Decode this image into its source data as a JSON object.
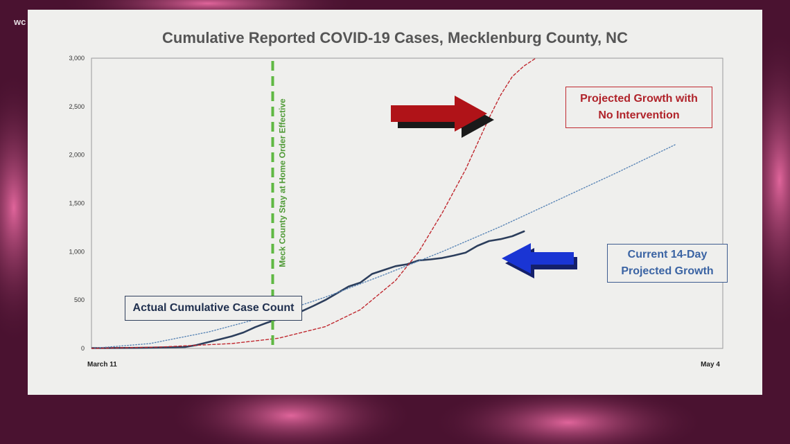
{
  "watermark": "wc",
  "colors": {
    "actual": "#2c3e5c",
    "trend_14day": "#5b86b6",
    "no_intervention": "#c0282f",
    "stay_home_line": "#5fb843",
    "red_arrow": "#b01318",
    "blue_arrow": "#1a35d4"
  },
  "annotations": {
    "actual_label": "Actual Cumulative Case Count",
    "projected_no_intervention_line1": "Projected Growth with",
    "projected_no_intervention_line2": "No Intervention",
    "current_14day_line1": "Current 14-Day",
    "current_14day_line2": "Projected Growth",
    "stay_home_label": "Meck County Stay at Home Order Effective"
  },
  "chart_data": {
    "type": "line",
    "title": "Cumulative Reported COVID-19 Cases, Mecklenburg County, NC",
    "xlabel": "",
    "ylabel": "",
    "x_tick_labels": [
      "March 11",
      "May 4"
    ],
    "x_range": [
      0,
      54
    ],
    "ylim": [
      0,
      3000
    ],
    "y_ticks": [
      0,
      500,
      1000,
      1500,
      2000,
      2500,
      3000
    ],
    "y_tick_labels": [
      "0",
      "500",
      "1,000",
      "1,500",
      "2,000",
      "2,500",
      "3,000"
    ],
    "grid": false,
    "vline": {
      "x": 15.5,
      "label": "Meck County Stay at Home Order Effective"
    },
    "series": [
      {
        "name": "Actual Cumulative Case Count",
        "style": "solid",
        "x": [
          0,
          4,
          8,
          9,
          10,
          11,
          12,
          13,
          14,
          15,
          16,
          17,
          18,
          19,
          20,
          21,
          22,
          23,
          24,
          25,
          26,
          27,
          28,
          29,
          30,
          31,
          32,
          33,
          34,
          35,
          36,
          37
        ],
        "y": [
          3,
          6,
          14,
          35,
          65,
          95,
          125,
          165,
          220,
          265,
          305,
          330,
          385,
          440,
          500,
          570,
          640,
          680,
          770,
          810,
          850,
          870,
          910,
          920,
          935,
          960,
          990,
          1060,
          1110,
          1130,
          1160,
          1210
        ]
      },
      {
        "name": "Current 14-Day Projected Growth",
        "style": "dotted",
        "x": [
          0,
          5,
          10,
          15,
          20,
          25,
          30,
          35,
          40,
          45,
          50
        ],
        "y": [
          0,
          50,
          170,
          330,
          530,
          760,
          1000,
          1260,
          1540,
          1820,
          2110
        ]
      },
      {
        "name": "Projected Growth with No Intervention",
        "style": "dashed",
        "x": [
          0,
          6,
          12,
          16,
          20,
          23,
          26,
          28,
          30,
          32,
          34,
          35,
          36,
          37,
          38
        ],
        "y": [
          0,
          15,
          50,
          105,
          225,
          400,
          700,
          1000,
          1400,
          1850,
          2380,
          2620,
          2810,
          2920,
          3000
        ]
      }
    ]
  }
}
